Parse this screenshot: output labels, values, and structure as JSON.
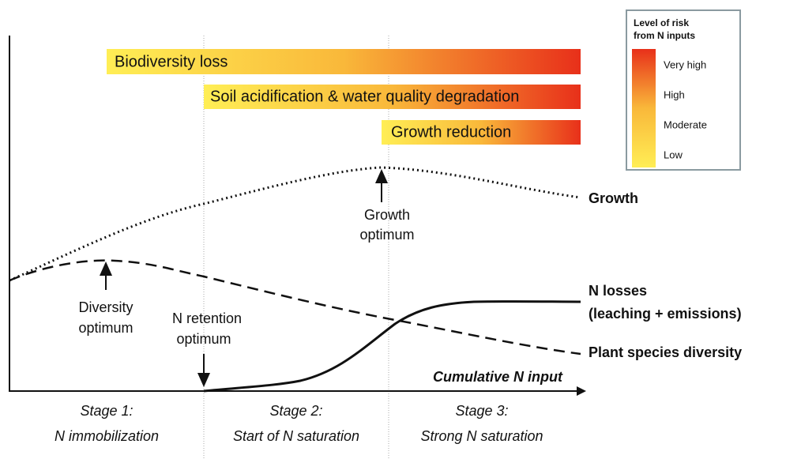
{
  "risk_bars": [
    {
      "label": "Biodiversity loss"
    },
    {
      "label": "Soil acidification & water quality degradation"
    },
    {
      "label": "Growth reduction"
    }
  ],
  "legend": {
    "title_lines": [
      "Level of risk",
      "from N inputs"
    ],
    "levels": [
      "Very high",
      "High",
      "Moderate",
      "Low"
    ]
  },
  "curves": [
    {
      "label_lines": [
        "Growth"
      ]
    },
    {
      "label_lines": [
        "N losses",
        "(leaching + emissions)"
      ]
    },
    {
      "label_lines": [
        "Plant species diversity"
      ]
    }
  ],
  "annotations": [
    {
      "lines": [
        "Growth",
        "optimum"
      ]
    },
    {
      "lines": [
        "Diversity",
        "optimum"
      ]
    },
    {
      "lines": [
        "N retention",
        "optimum"
      ]
    }
  ],
  "x_axis_label": "Cumulative N input",
  "stages": [
    {
      "title": "Stage 1:",
      "subtitle": "N immobilization"
    },
    {
      "title": "Stage 2:",
      "subtitle": "Start of N saturation"
    },
    {
      "title": "Stage 3:",
      "subtitle": "Strong N saturation"
    }
  ]
}
